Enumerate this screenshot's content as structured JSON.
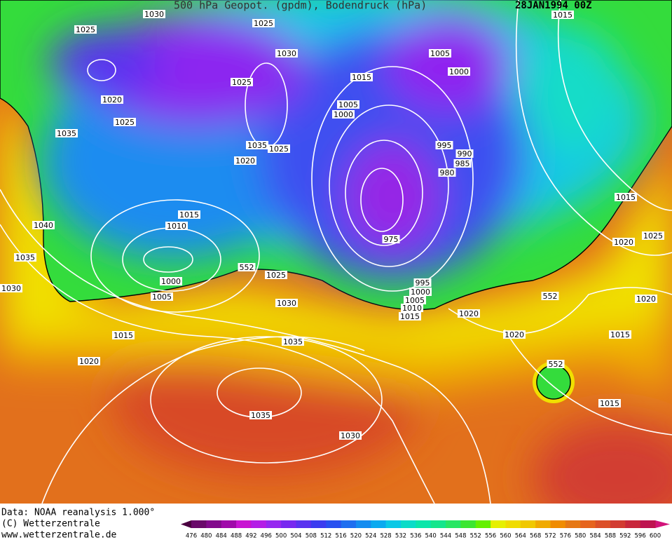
{
  "header": {
    "title": "500 hPa Geopot. (gpdm), Bodendruck (hPa)",
    "date": "28JAN1994 00Z"
  },
  "isobar_labels": [
    1030,
    1025,
    1025,
    1030,
    1025,
    1020,
    1025,
    1035,
    1035,
    1025,
    1020,
    1015,
    1005,
    1000,
    1005,
    1000,
    995,
    990,
    985,
    980,
    975,
    1015,
    1015,
    1025,
    1020,
    1020,
    1015,
    1015,
    1040,
    1035,
    1030,
    1015,
    1010,
    1000,
    1005,
    552,
    1025,
    1030,
    995,
    1000,
    1005,
    1010,
    1015,
    1020,
    1020,
    552,
    552,
    1015,
    1035,
    1020,
    1035,
    1030
  ],
  "footer": [
    "Data: NOAA reanalysis 1.000°",
    "(C) Wetterzentrale",
    "www.wetterzentrale.de"
  ],
  "colorbar": {
    "ticks": [
      476,
      480,
      484,
      488,
      492,
      496,
      500,
      504,
      508,
      512,
      516,
      520,
      524,
      528,
      532,
      536,
      540,
      544,
      548,
      552,
      556,
      560,
      564,
      568,
      572,
      576,
      580,
      584,
      588,
      592,
      596,
      600
    ],
    "colors": [
      "#6a0a6a",
      "#820a8c",
      "#a00aaa",
      "#c814d2",
      "#b41ee6",
      "#9628f0",
      "#7828f0",
      "#5a32f0",
      "#3c3cf0",
      "#2850f0",
      "#1e6ef0",
      "#148cf0",
      "#0aaaf0",
      "#0ac8e6",
      "#0adcc8",
      "#0ae6aa",
      "#14e68c",
      "#28e664",
      "#3ce632",
      "#64f000",
      "#e6f000",
      "#f0dc00",
      "#f0c800",
      "#f0aa00",
      "#f08c00",
      "#e67814",
      "#e6641e",
      "#dc5028",
      "#d23c32",
      "#c8283c",
      "#be1450"
    ],
    "low_color": "#4a0040",
    "high_color": "#d2147a"
  }
}
